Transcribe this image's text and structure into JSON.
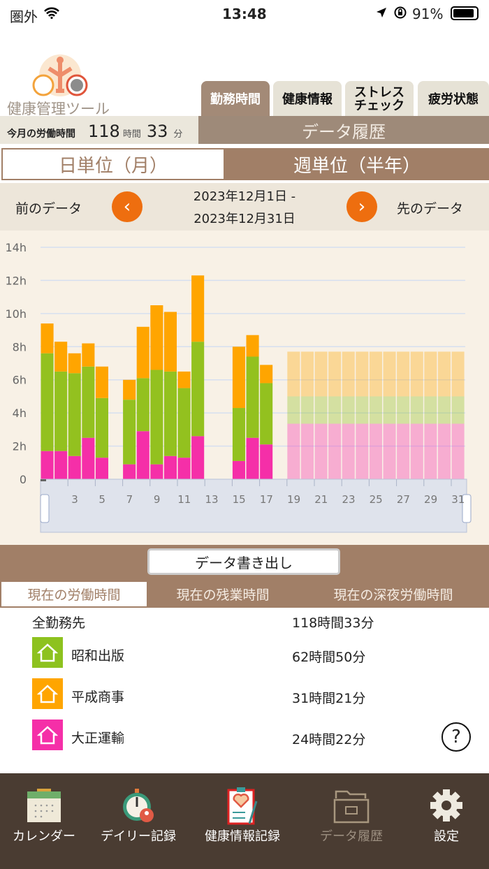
{
  "status_bar": {
    "carrier": "圏外",
    "time": "13:48",
    "battery": "91%"
  },
  "header": {
    "app_title": "健康管理ツール",
    "tabs": [
      {
        "label": "勤務時間",
        "active": true
      },
      {
        "label": "健康情報"
      },
      {
        "label": "ストレス\nチェック"
      },
      {
        "label": "疲労状態"
      }
    ],
    "monthly_label": "今月の労働時間",
    "monthly_hours": "118",
    "hours_unit": "時間",
    "monthly_minutes": "33",
    "minutes_unit": "分",
    "section_title": "データ履歴"
  },
  "period_toggle": {
    "daily": "日単位（月）",
    "weekly": "週単位（半年）",
    "selected": "daily"
  },
  "date_nav": {
    "prev_label": "前のデータ",
    "next_label": "先のデータ",
    "range_start": "2023年12月1日 -",
    "range_end": "2023年12月31日"
  },
  "chart_data": {
    "type": "bar",
    "stacked": true,
    "y_ticks": [
      "0",
      "2h",
      "4h",
      "6h",
      "8h",
      "10h",
      "12h",
      "14h"
    ],
    "ylim": [
      0,
      14
    ],
    "x_ticks": [
      "3",
      "5",
      "7",
      "9",
      "11",
      "13",
      "15",
      "17",
      "19",
      "21",
      "23",
      "25",
      "27",
      "29",
      "31"
    ],
    "categories": [
      1,
      2,
      3,
      4,
      5,
      6,
      7,
      8,
      9,
      10,
      11,
      12,
      13,
      14,
      15,
      16,
      17,
      18,
      19,
      20,
      21,
      22,
      23,
      24,
      25,
      26,
      27,
      28,
      29,
      30,
      31
    ],
    "series": [
      {
        "color": "#f52fa8",
        "values": [
          1.7,
          1.7,
          1.4,
          2.5,
          1.3,
          0,
          0.9,
          2.9,
          0.9,
          1.4,
          1.3,
          2.6,
          0,
          0,
          1.1,
          2.5,
          2.1,
          0,
          3.35,
          3.35,
          3.35,
          3.35,
          3.35,
          3.35,
          3.35,
          3.35,
          3.35,
          3.35,
          3.35,
          3.35,
          3.35
        ]
      },
      {
        "color": "#93c11f",
        "values": [
          5.9,
          4.8,
          5.0,
          4.3,
          3.6,
          0,
          3.9,
          3.2,
          5.7,
          5.1,
          4.2,
          5.7,
          0,
          0,
          3.2,
          4.9,
          3.7,
          0,
          1.65,
          1.65,
          1.65,
          1.65,
          1.65,
          1.65,
          1.65,
          1.65,
          1.65,
          1.65,
          1.65,
          1.65,
          1.65
        ]
      },
      {
        "color": "#ffa500",
        "values": [
          1.8,
          1.8,
          1.2,
          1.4,
          1.9,
          0,
          1.2,
          3.1,
          3.9,
          3.6,
          1.0,
          4.0,
          0,
          0,
          3.7,
          1.3,
          1.1,
          0,
          2.7,
          2.7,
          2.7,
          2.7,
          2.7,
          2.7,
          2.7,
          2.7,
          2.7,
          2.7,
          2.7,
          2.7,
          2.7
        ]
      }
    ],
    "projected_from_day": 19,
    "grid": true
  },
  "export_button": "データ書き出し",
  "summary_tabs": [
    {
      "label": "現在の労働時間",
      "active": true
    },
    {
      "label": "現在の残業時間"
    },
    {
      "label": "現在の深夜労働時間"
    }
  ],
  "summary": {
    "total_label": "全勤務先",
    "total_value": "118時間33分",
    "employers": [
      {
        "name": "昭和出版",
        "value": "62時間50分",
        "color": "#8dc21f"
      },
      {
        "name": "平成商事",
        "value": "31時間21分",
        "color": "#ffa500"
      },
      {
        "name": "大正運輸",
        "value": "24時間22分",
        "color": "#f52fa8"
      }
    ]
  },
  "bottom_nav": [
    {
      "label": "カレンダー"
    },
    {
      "label": "デイリー記録"
    },
    {
      "label": "健康情報記録"
    },
    {
      "label": "データ履歴",
      "active": true
    },
    {
      "label": "設定"
    }
  ]
}
